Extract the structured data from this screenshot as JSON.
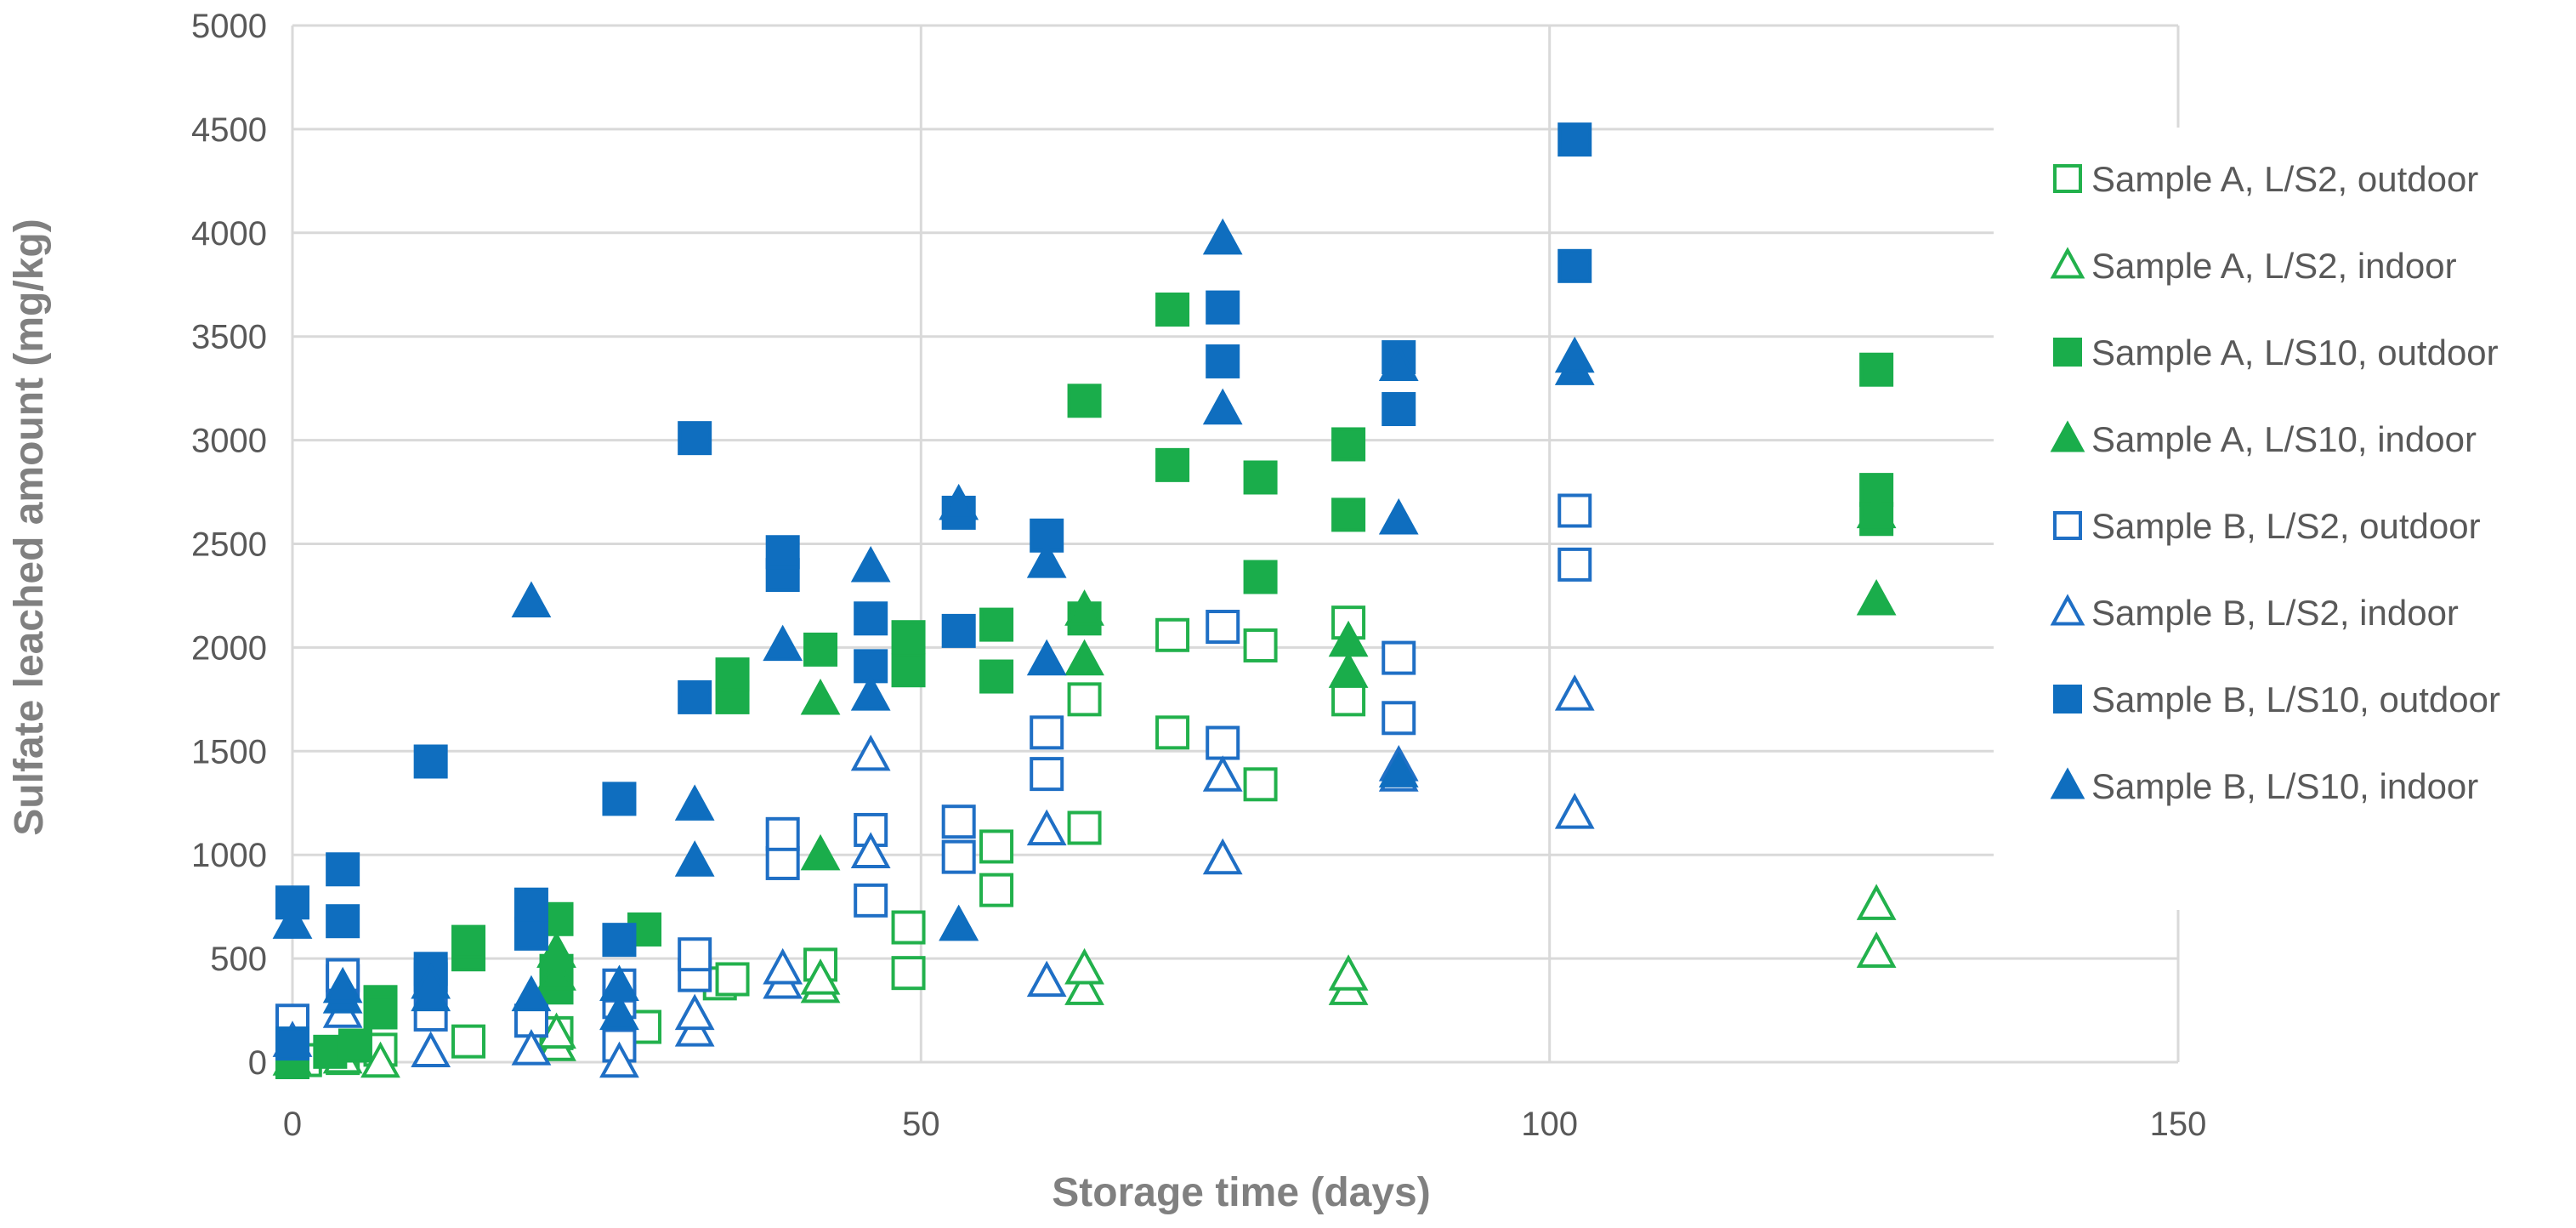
{
  "chart_data": {
    "type": "scatter",
    "xlabel": "Storage time (days)",
    "ylabel": "Sulfate leached amount (mg/kg)",
    "xlim": [
      0,
      150
    ],
    "ylim": [
      0,
      5000
    ],
    "x_ticks": [
      "0",
      "50",
      "100",
      "150"
    ],
    "y_ticks": [
      "0",
      "500",
      "1000",
      "1500",
      "2000",
      "2500",
      "3000",
      "3500",
      "4000",
      "4500",
      "5000"
    ],
    "grid": true,
    "legend_position": "right",
    "series": [
      {
        "name": "Sample A, L/S2, outdoor",
        "marker": "square",
        "filled": false,
        "color": "#22b14c",
        "points": [
          [
            0,
            0
          ],
          [
            1,
            10
          ],
          [
            4,
            20
          ],
          [
            7,
            60
          ],
          [
            14,
            100
          ],
          [
            21,
            140
          ],
          [
            28,
            170
          ],
          [
            34,
            380
          ],
          [
            35,
            400
          ],
          [
            42,
            470
          ],
          [
            49,
            650
          ],
          [
            49,
            430
          ],
          [
            56,
            830
          ],
          [
            56,
            1040
          ],
          [
            63,
            1130
          ],
          [
            63,
            1750
          ],
          [
            70,
            1590
          ],
          [
            70,
            2060
          ],
          [
            77,
            1340
          ],
          [
            77,
            2010
          ],
          [
            84,
            1750
          ],
          [
            84,
            2120
          ]
        ]
      },
      {
        "name": "Sample A, L/S2, indoor",
        "marker": "triangle",
        "filled": false,
        "color": "#22b14c",
        "points": [
          [
            0,
            10
          ],
          [
            4,
            20
          ],
          [
            7,
            0
          ],
          [
            21,
            80
          ],
          [
            21,
            140
          ],
          [
            42,
            360
          ],
          [
            42,
            400
          ],
          [
            63,
            350
          ],
          [
            63,
            450
          ],
          [
            84,
            350
          ],
          [
            84,
            420
          ],
          [
            126,
            530
          ],
          [
            126,
            760
          ]
        ]
      },
      {
        "name": "Sample A, L/S10, outdoor",
        "marker": "square",
        "filled": true,
        "color": "#1aad4b",
        "points": [
          [
            0,
            0
          ],
          [
            3,
            50
          ],
          [
            5,
            80
          ],
          [
            7,
            290
          ],
          [
            7,
            240
          ],
          [
            14,
            520
          ],
          [
            14,
            580
          ],
          [
            21,
            360
          ],
          [
            21,
            440
          ],
          [
            21,
            690
          ],
          [
            28,
            640
          ],
          [
            35,
            1760
          ],
          [
            35,
            1870
          ],
          [
            42,
            1990
          ],
          [
            49,
            1890
          ],
          [
            49,
            2050
          ],
          [
            56,
            1860
          ],
          [
            56,
            2110
          ],
          [
            63,
            3190
          ],
          [
            63,
            2140
          ],
          [
            70,
            2880
          ],
          [
            70,
            3630
          ],
          [
            77,
            2340
          ],
          [
            77,
            2820
          ],
          [
            84,
            2640
          ],
          [
            84,
            2980
          ],
          [
            126,
            3340
          ],
          [
            126,
            2760
          ],
          [
            126,
            2620
          ]
        ]
      },
      {
        "name": "Sample A, L/S10, indoor",
        "marker": "triangle",
        "filled": true,
        "color": "#1aad4b",
        "points": [
          [
            21,
            420
          ],
          [
            21,
            530
          ],
          [
            42,
            1000
          ],
          [
            42,
            1750
          ],
          [
            63,
            1940
          ],
          [
            63,
            2180
          ],
          [
            84,
            1880
          ],
          [
            84,
            2030
          ],
          [
            126,
            2230
          ],
          [
            126,
            2650
          ]
        ]
      },
      {
        "name": "Sample B, L/S2, outdoor",
        "marker": "square",
        "filled": false,
        "color": "#1f6fc5",
        "points": [
          [
            0,
            200
          ],
          [
            4,
            390
          ],
          [
            4,
            420
          ],
          [
            11,
            230
          ],
          [
            11,
            400
          ],
          [
            19,
            200
          ],
          [
            26,
            290
          ],
          [
            26,
            370
          ],
          [
            26,
            80
          ],
          [
            32,
            420
          ],
          [
            32,
            520
          ],
          [
            39,
            960
          ],
          [
            39,
            1100
          ],
          [
            46,
            780
          ],
          [
            46,
            1120
          ],
          [
            53,
            990
          ],
          [
            53,
            1160
          ],
          [
            60,
            1390
          ],
          [
            60,
            1590
          ],
          [
            74,
            1540
          ],
          [
            74,
            2100
          ],
          [
            88,
            1660
          ],
          [
            88,
            1950
          ],
          [
            102,
            2400
          ],
          [
            102,
            2660
          ]
        ]
      },
      {
        "name": "Sample B, L/S2, indoor",
        "marker": "triangle",
        "filled": false,
        "color": "#1f6fc5",
        "points": [
          [
            0,
            100
          ],
          [
            4,
            240
          ],
          [
            11,
            50
          ],
          [
            19,
            60
          ],
          [
            26,
            0
          ],
          [
            32,
            150
          ],
          [
            32,
            230
          ],
          [
            39,
            380
          ],
          [
            39,
            450
          ],
          [
            46,
            1010
          ],
          [
            46,
            1480
          ],
          [
            53,
            660
          ],
          [
            60,
            390
          ],
          [
            60,
            1120
          ],
          [
            74,
            980
          ],
          [
            74,
            1380
          ],
          [
            88,
            1380
          ],
          [
            88,
            1430
          ],
          [
            102,
            1200
          ],
          [
            102,
            1770
          ]
        ]
      },
      {
        "name": "Sample B, L/S10, outdoor",
        "marker": "square",
        "filled": true,
        "color": "#0f6ebf",
        "points": [
          [
            0,
            90
          ],
          [
            0,
            770
          ],
          [
            4,
            680
          ],
          [
            4,
            930
          ],
          [
            11,
            420
          ],
          [
            11,
            450
          ],
          [
            11,
            1450
          ],
          [
            19,
            620
          ],
          [
            19,
            760
          ],
          [
            26,
            590
          ],
          [
            26,
            1270
          ],
          [
            32,
            1760
          ],
          [
            32,
            3010
          ],
          [
            39,
            2350
          ],
          [
            39,
            2460
          ],
          [
            46,
            1910
          ],
          [
            46,
            2140
          ],
          [
            53,
            2080
          ],
          [
            53,
            2650
          ],
          [
            60,
            2540
          ],
          [
            74,
            3380
          ],
          [
            74,
            3640
          ],
          [
            88,
            3150
          ],
          [
            88,
            3400
          ],
          [
            102,
            3840
          ],
          [
            102,
            4450
          ]
        ]
      },
      {
        "name": "Sample B, L/S10, indoor",
        "marker": "triangle",
        "filled": true,
        "color": "#0f6ebf",
        "points": [
          [
            0,
            670
          ],
          [
            4,
            310
          ],
          [
            4,
            360
          ],
          [
            11,
            320
          ],
          [
            11,
            380
          ],
          [
            19,
            320
          ],
          [
            19,
            2220
          ],
          [
            26,
            230
          ],
          [
            26,
            370
          ],
          [
            32,
            970
          ],
          [
            32,
            1240
          ],
          [
            39,
            2010
          ],
          [
            46,
            1770
          ],
          [
            46,
            2390
          ],
          [
            53,
            660
          ],
          [
            53,
            2690
          ],
          [
            60,
            1940
          ],
          [
            60,
            2410
          ],
          [
            74,
            3150
          ],
          [
            74,
            3970
          ],
          [
            88,
            1400
          ],
          [
            88,
            2620
          ],
          [
            88,
            3360
          ],
          [
            102,
            3340
          ],
          [
            102,
            3400
          ]
        ]
      }
    ]
  }
}
